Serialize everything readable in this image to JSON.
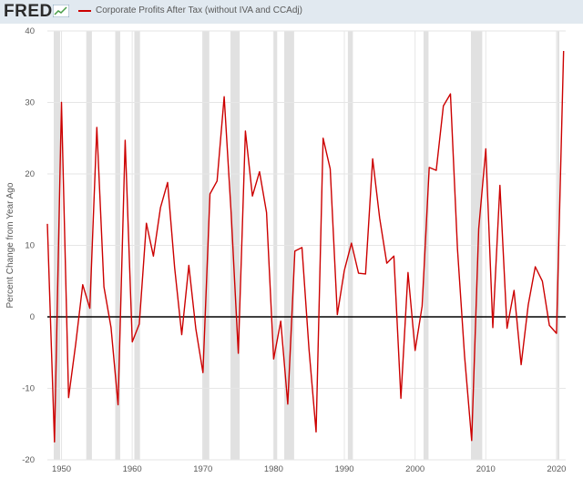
{
  "header": {
    "logo_text": "FRED",
    "legend_label": "Corporate Profits After Tax (without IVA and CCAdj)"
  },
  "colors": {
    "series": "#cc0000",
    "recession": "#e1e1e1",
    "zero_line": "#000000",
    "grid": "#e6e6e6",
    "background": "#e1e9f0"
  },
  "chart_data": {
    "type": "line",
    "title": "",
    "ylabel": "Percent Change from Year Ago",
    "xlabel": "",
    "xlim": [
      1948,
      2021.3
    ],
    "ylim": [
      -20,
      40
    ],
    "yticks": [
      -20,
      -10,
      0,
      10,
      20,
      30,
      40
    ],
    "xticks": [
      1950,
      1960,
      1970,
      1980,
      1990,
      2000,
      2010,
      2020
    ],
    "grid": true,
    "legend_position": "top-left",
    "recessions": [
      [
        1948.9,
        1949.8
      ],
      [
        1953.5,
        1954.3
      ],
      [
        1957.6,
        1958.3
      ],
      [
        1960.3,
        1961.1
      ],
      [
        1969.9,
        1970.9
      ],
      [
        1973.9,
        1975.2
      ],
      [
        1980.0,
        1980.5
      ],
      [
        1981.5,
        1982.9
      ],
      [
        1990.5,
        1991.2
      ],
      [
        2001.2,
        2001.9
      ],
      [
        2007.9,
        2009.5
      ],
      [
        2020.1,
        2020.4
      ]
    ],
    "series": [
      {
        "name": "Corporate Profits After Tax (without IVA and CCAdj)",
        "x": [
          1948,
          1949,
          1950,
          1951,
          1952,
          1953,
          1954,
          1955,
          1956,
          1957,
          1958,
          1959,
          1960,
          1961,
          1962,
          1963,
          1964,
          1965,
          1966,
          1967,
          1968,
          1969,
          1970,
          1971,
          1972,
          1973,
          1974,
          1975,
          1976,
          1977,
          1978,
          1979,
          1980,
          1981,
          1982,
          1983,
          1984,
          1985,
          1986,
          1987,
          1988,
          1989,
          1990,
          1991,
          1992,
          1993,
          1994,
          1995,
          1996,
          1997,
          1998,
          1999,
          2000,
          2001,
          2002,
          2003,
          2004,
          2005,
          2006,
          2007,
          2008,
          2009,
          2010,
          2011,
          2012,
          2013,
          2014,
          2015,
          2016,
          2017,
          2018,
          2019,
          2020,
          2021
        ],
        "y": [
          13,
          -17.5,
          30,
          -11.3,
          -3.8,
          4.5,
          1.2,
          26.5,
          4.2,
          -1.5,
          -12.3,
          24.7,
          -3.5,
          -1,
          13.1,
          8.5,
          15.3,
          18.8,
          6.9,
          -2.5,
          7.2,
          -1.7,
          -7.8,
          17.2,
          19,
          30.8,
          14.4,
          -5.1,
          26,
          16.9,
          20.3,
          14.6,
          -5.9,
          -0.6,
          -12.2,
          9.2,
          9.7,
          -4.5,
          -16.1,
          25,
          20.7,
          0.3,
          6.5,
          10.3,
          6.1,
          6,
          22.1,
          13.8,
          7.5,
          8.5,
          -11.4,
          6.2,
          -4.7,
          1.5,
          20.9,
          20.5,
          29.5,
          31.2,
          9.5,
          -5.5,
          -17.3,
          12.3,
          23.5,
          -1.5,
          18.4,
          -1.6,
          3.7,
          -6.7,
          1.7,
          7,
          5,
          -1.2,
          -2.3,
          37.2
        ]
      }
    ]
  }
}
